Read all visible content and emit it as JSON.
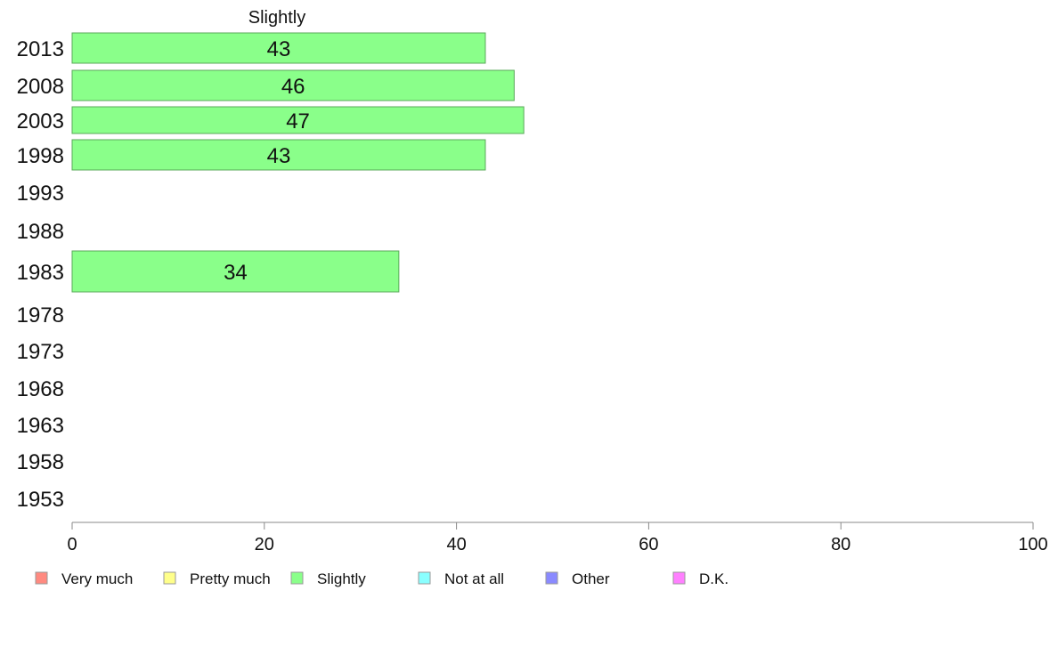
{
  "chart_data": {
    "type": "bar",
    "orientation": "horizontal",
    "title": "Slightly",
    "categories": [
      "2013",
      "2008",
      "2003",
      "1998",
      "1993",
      "1988",
      "1983",
      "1978",
      "1973",
      "1968",
      "1963",
      "1958",
      "1953"
    ],
    "values": [
      43,
      46,
      47,
      43,
      null,
      null,
      34,
      null,
      null,
      null,
      null,
      null,
      null
    ],
    "xlim": [
      0,
      100
    ],
    "xticks": [
      0,
      20,
      40,
      60,
      80,
      100
    ],
    "grid": false,
    "legend_position": "bottom",
    "series_color": "#8aff8a",
    "legend": [
      {
        "label": "Very much",
        "color": "#ff8a80"
      },
      {
        "label": "Pretty much",
        "color": "#ffff8a"
      },
      {
        "label": "Slightly",
        "color": "#8aff8a"
      },
      {
        "label": "Not at all",
        "color": "#8affff"
      },
      {
        "label": "Other",
        "color": "#8a8aff"
      },
      {
        "label": "D.K.",
        "color": "#ff80ff"
      }
    ]
  }
}
